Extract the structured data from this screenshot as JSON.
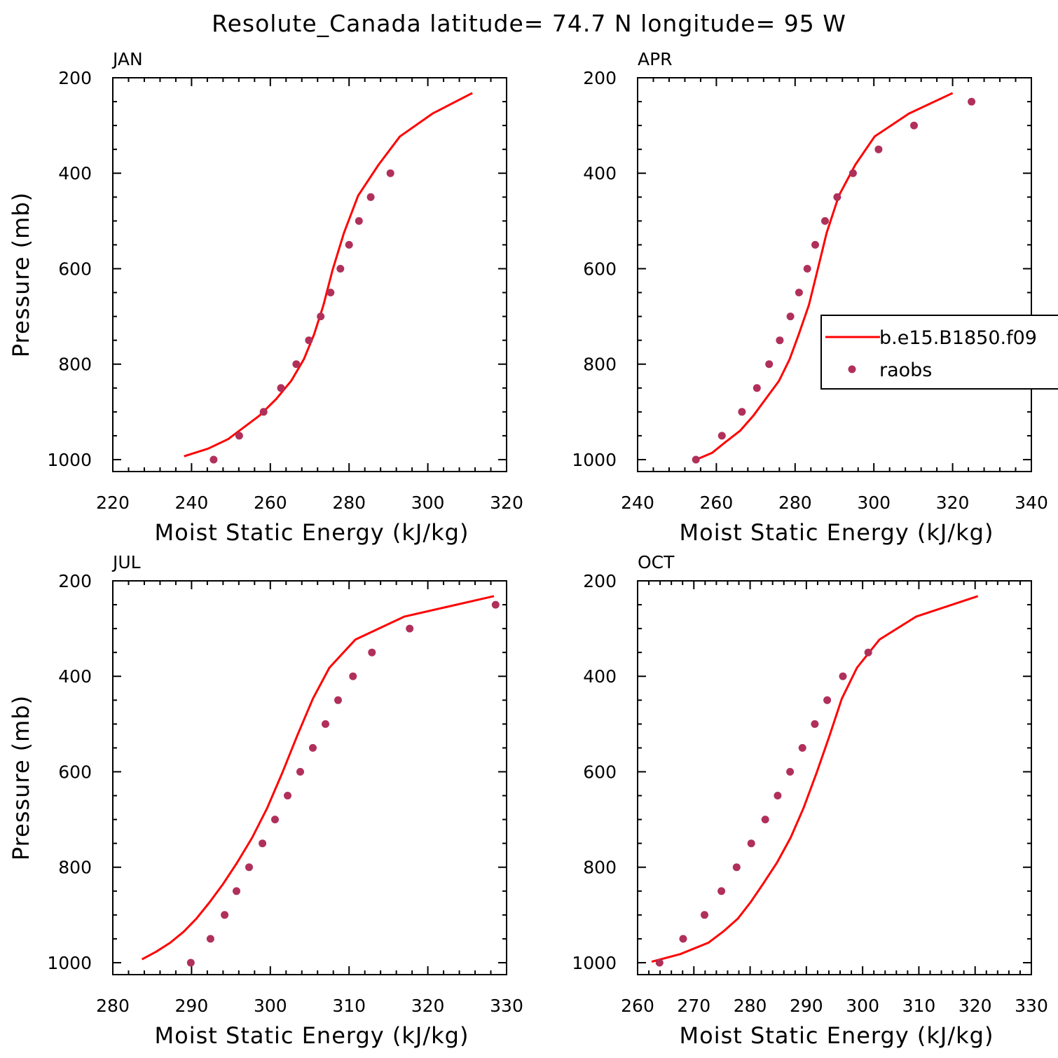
{
  "figure_title": "Resolute_Canada  latitude= 74.7 N longitude= 95 W",
  "colors": {
    "model_line": "#ff0000",
    "obs_marker": "#b0305a",
    "axes": "#000000"
  },
  "legend": {
    "entries": [
      {
        "label": "b.e15.B1850.f09",
        "style": "line"
      },
      {
        "label": "raobs",
        "style": "marker"
      }
    ]
  },
  "chart_data": [
    {
      "type": "line",
      "panel": "JAN",
      "xlabel": "Moist Static Energy (kJ/kg)",
      "ylabel": "Pressure (mb)",
      "xlim": [
        220,
        320
      ],
      "ylim": [
        1025,
        200
      ],
      "xticks": [
        220,
        240,
        260,
        280,
        300,
        320
      ],
      "yticks": [
        200,
        400,
        600,
        800,
        1000
      ],
      "series": [
        {
          "name": "b.e15.B1850.f09",
          "kind": "line",
          "x": [
            311.3,
            301.2,
            292.9,
            287.5,
            282.3,
            278.7,
            275.8,
            273.5,
            271.1,
            268.5,
            265.3,
            261.5,
            257.2,
            252.2,
            249.3,
            244.2,
            238.1
          ],
          "y": [
            232,
            275,
            323,
            382,
            447,
            525,
            603,
            676,
            738,
            790,
            835,
            873,
            908,
            939,
            957,
            977,
            993
          ]
        },
        {
          "name": "raobs",
          "kind": "scatter",
          "x": [
            290.5,
            285.5,
            282.5,
            280.0,
            277.8,
            275.3,
            272.8,
            269.8,
            266.6,
            262.7,
            258.3,
            252.1,
            245.6
          ],
          "y": [
            400,
            450,
            500,
            550,
            600,
            650,
            700,
            750,
            800,
            850,
            900,
            950,
            1000
          ]
        }
      ]
    },
    {
      "type": "line",
      "panel": "APR",
      "xlabel": "Moist Static Energy (kJ/kg)",
      "ylabel": "",
      "xlim": [
        240,
        340
      ],
      "ylim": [
        1025,
        200
      ],
      "xticks": [
        240,
        260,
        280,
        300,
        320,
        340
      ],
      "yticks": [
        200,
        400,
        600,
        800,
        1000
      ],
      "series": [
        {
          "name": "b.e15.B1850.f09",
          "kind": "line",
          "x": [
            320.0,
            308.9,
            300.2,
            295.3,
            291.1,
            288.0,
            285.7,
            283.5,
            280.9,
            278.6,
            275.9,
            272.5,
            269.4,
            266.1,
            262.2,
            258.9,
            254.0
          ],
          "y": [
            232,
            275,
            323,
            382,
            447,
            525,
            603,
            676,
            738,
            790,
            835,
            873,
            908,
            939,
            964,
            986,
            1003
          ]
        },
        {
          "name": "raobs",
          "kind": "scatter",
          "x": [
            324.8,
            310.2,
            301.2,
            294.7,
            290.7,
            287.6,
            285.1,
            283.1,
            281.0,
            278.8,
            276.1,
            273.4,
            270.3,
            266.5,
            261.4,
            254.8
          ],
          "y": [
            250,
            300,
            350,
            400,
            450,
            500,
            550,
            600,
            650,
            700,
            750,
            800,
            850,
            900,
            950,
            1000
          ]
        }
      ]
    },
    {
      "type": "line",
      "panel": "JUL",
      "xlabel": "Moist Static Energy (kJ/kg)",
      "ylabel": "Pressure (mb)",
      "xlim": [
        280,
        330
      ],
      "ylim": [
        1025,
        200
      ],
      "xticks": [
        280,
        290,
        300,
        310,
        320,
        330
      ],
      "yticks": [
        200,
        400,
        600,
        800,
        1000
      ],
      "series": [
        {
          "name": "b.e15.B1850.f09",
          "kind": "line",
          "x": [
            328.4,
            317.0,
            310.8,
            307.5,
            305.4,
            303.4,
            301.5,
            299.6,
            297.7,
            295.8,
            294.0,
            292.3,
            290.6,
            289.0,
            287.3,
            285.5,
            283.7
          ],
          "y": [
            232,
            275,
            323,
            382,
            447,
            525,
            603,
            676,
            738,
            790,
            835,
            873,
            908,
            935,
            958,
            977,
            993
          ]
        },
        {
          "name": "raobs",
          "kind": "scatter",
          "x": [
            328.6,
            317.7,
            312.9,
            310.5,
            308.6,
            307.0,
            305.4,
            303.8,
            302.2,
            300.6,
            299.0,
            297.3,
            295.7,
            294.2,
            292.4,
            289.9
          ],
          "y": [
            250,
            300,
            350,
            400,
            450,
            500,
            550,
            600,
            650,
            700,
            750,
            800,
            850,
            900,
            950,
            1000
          ]
        }
      ]
    },
    {
      "type": "line",
      "panel": "OCT",
      "xlabel": "Moist Static Energy (kJ/kg)",
      "ylabel": "",
      "xlim": [
        260,
        330
      ],
      "ylim": [
        1025,
        200
      ],
      "xticks": [
        260,
        270,
        280,
        290,
        300,
        310,
        320,
        330
      ],
      "yticks": [
        200,
        400,
        600,
        800,
        1000
      ],
      "series": [
        {
          "name": "b.e15.B1850.f09",
          "kind": "line",
          "x": [
            320.5,
            309.5,
            303.0,
            299.0,
            296.3,
            294.1,
            291.8,
            289.5,
            287.2,
            284.8,
            282.3,
            280.1,
            277.8,
            275.2,
            272.6,
            267.6,
            262.5
          ],
          "y": [
            232,
            275,
            323,
            382,
            447,
            525,
            603,
            676,
            738,
            790,
            835,
            873,
            908,
            935,
            958,
            982,
            998
          ]
        },
        {
          "name": "raobs",
          "kind": "scatter",
          "x": [
            301.0,
            296.5,
            293.7,
            291.5,
            289.3,
            287.1,
            284.9,
            282.7,
            280.2,
            277.6,
            274.9,
            271.9,
            268.1,
            263.9
          ],
          "y": [
            350,
            400,
            450,
            500,
            550,
            600,
            650,
            700,
            750,
            800,
            850,
            900,
            950,
            1000
          ]
        }
      ]
    }
  ]
}
